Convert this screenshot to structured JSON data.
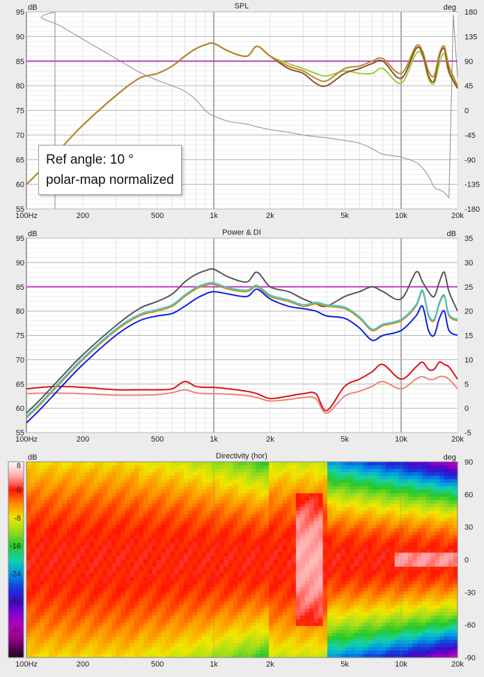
{
  "panels": {
    "spl": {
      "title": "SPL",
      "left_unit": "dB",
      "right_unit": "deg",
      "callout_line1": "Ref angle: 10 °",
      "callout_line2": "polar-map normalized"
    },
    "power": {
      "title": "Power & DI",
      "left_unit": "dB",
      "right_unit": "dB"
    },
    "directivity": {
      "title": "Directivity (hor)",
      "left_unit": "dB",
      "right_unit": "deg"
    }
  },
  "x_tick_labels": [
    "100Hz",
    "200",
    "500",
    "1k",
    "2k",
    "5k",
    "10k",
    "20k"
  ],
  "x_tick_values": [
    100,
    200,
    500,
    1000,
    2000,
    5000,
    10000,
    20000
  ],
  "colors": {
    "reference_line": "#c040c0",
    "spl_curve_1": "#b8862a",
    "spl_curve_2": "#8c4a2a",
    "spl_curve_3": "#9acd32",
    "spl_phase": "#8a8a8a",
    "power_gray": "#555555",
    "power_orange": "#d08a1a",
    "power_cyan": "#40c8d0",
    "power_blue": "#0a1ee0",
    "di_red": "#dd1010",
    "di_pink": "#f08070"
  },
  "chart_data": [
    {
      "type": "line",
      "title": "SPL",
      "ylabel": "dB",
      "y2label": "deg",
      "xlim": [
        100,
        20000
      ],
      "ylim": [
        55,
        95
      ],
      "y2lim": [
        -180,
        180
      ],
      "x_scale": "log",
      "yticks": [
        55,
        60,
        65,
        70,
        75,
        80,
        85,
        90,
        95
      ],
      "y2ticks": [
        -180,
        -135,
        -90,
        -45,
        0,
        45,
        90,
        135,
        180
      ],
      "reference_line_y": 85,
      "grid": true,
      "x": [
        100,
        120,
        150,
        200,
        300,
        400,
        500,
        600,
        700,
        800,
        900,
        1000,
        1200,
        1500,
        1700,
        2000,
        2500,
        3000,
        3500,
        4000,
        5000,
        6000,
        7000,
        8000,
        10000,
        12000,
        13000,
        14000,
        15000,
        16000,
        17000,
        18000,
        20000
      ],
      "series": [
        {
          "values": [
            60,
            63,
            67,
            72,
            78,
            81.5,
            82.5,
            84,
            86,
            87.5,
            88.3,
            88.6,
            87,
            86,
            88,
            86,
            84,
            83,
            81.5,
            81,
            83.5,
            84,
            85,
            85.5,
            82.5,
            88,
            87,
            83,
            82,
            86.5,
            88,
            84,
            80
          ]
        },
        {
          "values": [
            60,
            63,
            67,
            72,
            78,
            81.5,
            82.5,
            84,
            86,
            87.5,
            88.3,
            88.6,
            87,
            86,
            88,
            86,
            83.5,
            82.5,
            80.5,
            80,
            82.5,
            83.5,
            84.5,
            85,
            81.5,
            87.5,
            86.5,
            82,
            81,
            86,
            87.5,
            83,
            79.5
          ]
        },
        {
          "values": [
            60,
            63,
            67,
            72,
            78,
            81.5,
            82.5,
            84,
            86,
            87.5,
            88.3,
            88.6,
            87,
            86,
            88,
            86,
            84.5,
            83.5,
            82.5,
            82,
            83,
            82.5,
            82.5,
            83.5,
            80.5,
            86.5,
            86,
            81.5,
            80.5,
            84.5,
            86.5,
            82.5,
            79.5
          ]
        }
      ],
      "phase_deg": [
        180,
        170,
        155,
        130,
        95,
        70,
        55,
        45,
        35,
        20,
        0,
        -10,
        -20,
        -25,
        -30,
        -35,
        -40,
        -45,
        -48,
        -50,
        -55,
        -60,
        -70,
        -80,
        -85,
        -95,
        -105,
        -120,
        -140,
        -145,
        -150,
        -160,
        175
      ]
    },
    {
      "type": "line",
      "title": "Power & DI",
      "ylabel": "dB",
      "y2label": "dB",
      "xlim": [
        100,
        20000
      ],
      "ylim": [
        55,
        95
      ],
      "y2lim": [
        -5,
        35
      ],
      "x_scale": "log",
      "yticks": [
        55,
        60,
        65,
        70,
        75,
        80,
        85,
        90,
        95
      ],
      "y2ticks": [
        -5,
        0,
        5,
        10,
        15,
        20,
        25,
        30,
        35
      ],
      "reference_line_y": 85,
      "grid": true,
      "x": [
        100,
        120,
        150,
        200,
        300,
        400,
        500,
        600,
        700,
        800,
        900,
        1000,
        1200,
        1500,
        1700,
        2000,
        2500,
        3000,
        3500,
        4000,
        5000,
        6000,
        7000,
        8000,
        10000,
        12000,
        13000,
        14000,
        15000,
        16000,
        17000,
        18000,
        20000
      ],
      "series": [
        {
          "values": [
            59,
            62,
            66,
            71,
            77,
            80.5,
            82,
            83.5,
            86,
            87.5,
            88.3,
            88.6,
            87,
            86,
            88,
            85,
            84,
            82.5,
            81.5,
            81,
            83,
            84,
            85,
            84,
            82.5,
            88,
            86,
            84,
            83,
            86,
            88,
            84,
            80
          ]
        },
        {
          "values": [
            58,
            61,
            65,
            70,
            76,
            79,
            80,
            81,
            83,
            84.5,
            85.3,
            85.5,
            84.5,
            84,
            85,
            83,
            82,
            81,
            81.5,
            81,
            80.5,
            78.5,
            76,
            77,
            78,
            81,
            84,
            79,
            78,
            81.5,
            83,
            79,
            78
          ]
        },
        {
          "values": [
            58.3,
            61.3,
            65.3,
            70.3,
            76.3,
            79.3,
            80.3,
            81.3,
            83.3,
            84.8,
            85.6,
            85.8,
            84.8,
            84.3,
            85.3,
            83.3,
            82.3,
            81.3,
            81.8,
            81.3,
            80.8,
            78.8,
            76.3,
            77.3,
            78.3,
            81.3,
            84.3,
            79.3,
            78.3,
            81.8,
            83.3,
            79.3,
            78.3
          ]
        },
        {
          "values": [
            57,
            60,
            64,
            69,
            75,
            78,
            79,
            79.5,
            81,
            82.5,
            83.5,
            84,
            83.5,
            83,
            84.5,
            82.5,
            81,
            80.5,
            80,
            79,
            78.5,
            76.5,
            74,
            75,
            76,
            79,
            81,
            76,
            75,
            78.5,
            80,
            76,
            75
          ]
        }
      ],
      "di_series": [
        {
          "values": [
            4,
            4.3,
            4.5,
            4.3,
            3.8,
            3.8,
            3.8,
            4,
            5.5,
            4.5,
            4.3,
            4.3,
            4,
            3.5,
            3,
            2,
            2.5,
            3,
            3,
            -0.5,
            4.5,
            6,
            7.5,
            9,
            6,
            8.5,
            9.5,
            8,
            8,
            9.5,
            9,
            8.5,
            6
          ]
        },
        {
          "values": [
            3,
            3.1,
            3.1,
            3,
            2.7,
            2.7,
            2.8,
            3.2,
            3.8,
            3.2,
            3,
            3,
            2.9,
            2.6,
            2.2,
            1.5,
            1.8,
            2.2,
            2,
            -1,
            2.5,
            3.5,
            4.5,
            5.5,
            4,
            6,
            6.5,
            6,
            6,
            6.5,
            6.5,
            6,
            4
          ]
        }
      ]
    },
    {
      "type": "heatmap",
      "title": "Directivity (hor)",
      "xlim": [
        100,
        20000
      ],
      "x_scale": "log",
      "ylim": [
        -90,
        90
      ],
      "yticks": [
        -90,
        -60,
        -30,
        0,
        30,
        60,
        90
      ],
      "colorbar_range": [
        -48,
        8
      ],
      "colorbar_ticks": [
        8,
        0,
        -8,
        -16,
        -24,
        -32,
        -40,
        -48
      ]
    }
  ]
}
